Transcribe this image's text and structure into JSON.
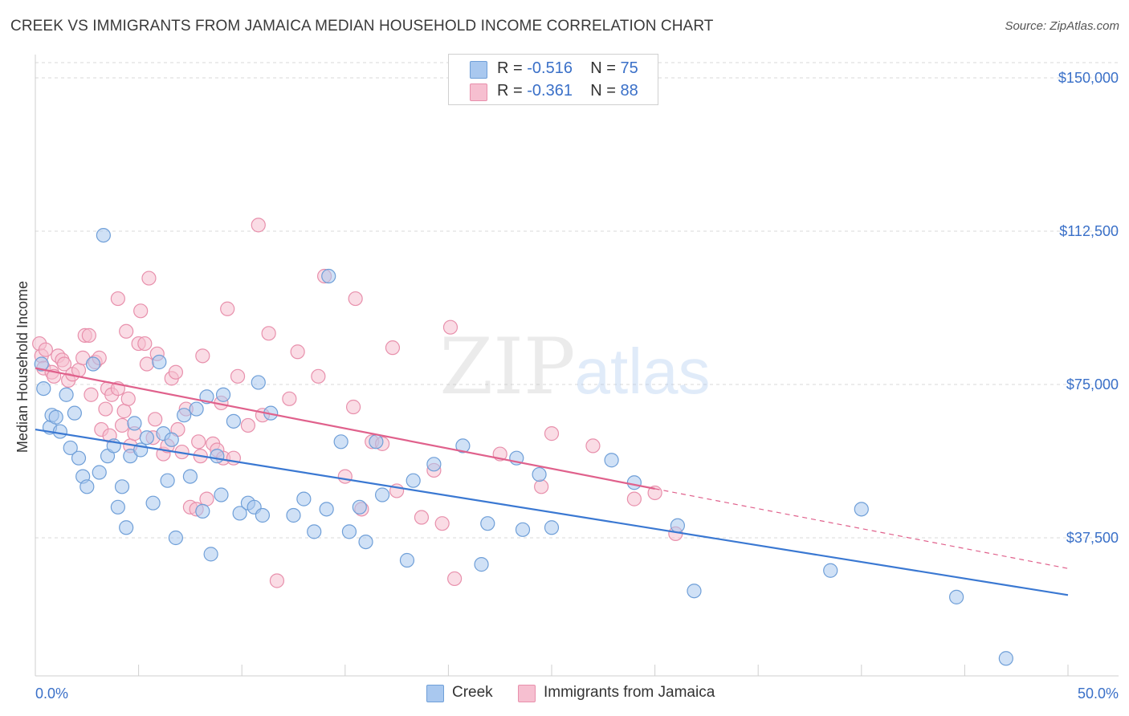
{
  "title": "CREEK VS IMMIGRANTS FROM JAMAICA MEDIAN HOUSEHOLD INCOME CORRELATION CHART",
  "source": "Source: ZipAtlas.com",
  "watermark": {
    "zip": "ZIP",
    "atlas": "atlas"
  },
  "legend": {
    "creek": {
      "r_label": "R =",
      "r_value": "-0.516",
      "n_label": "N =",
      "n_value": "75"
    },
    "jamaica": {
      "r_label": "R =",
      "r_value": "-0.361",
      "n_label": "N =",
      "n_value": "88"
    }
  },
  "bottom_legend": {
    "creek": "Creek",
    "jamaica": "Immigrants from Jamaica"
  },
  "colors": {
    "creek_fill": "#a9c8ef",
    "creek_stroke": "#6f9fd8",
    "creek_line": "#3a78d2",
    "jamaica_fill": "#f6bfd0",
    "jamaica_stroke": "#e890ac",
    "jamaica_line": "#e0618c",
    "axis_label": "#3a70c8",
    "grid": "#d8d8d8"
  },
  "chart_data": {
    "type": "scatter",
    "title": "CREEK VS IMMIGRANTS FROM JAMAICA MEDIAN HOUSEHOLD INCOME CORRELATION CHART",
    "xlabel": "",
    "ylabel": "Median Household Income",
    "xlim": [
      0,
      50
    ],
    "ylim": [
      0,
      150000
    ],
    "x_tick_labels": {
      "min": "0.0%",
      "max": "50.0%"
    },
    "y_ticks": [
      {
        "value": 37500,
        "label": "$37,500"
      },
      {
        "value": 75000,
        "label": "$75,000"
      },
      {
        "value": 112500,
        "label": "$112,500"
      },
      {
        "value": 150000,
        "label": "$150,000"
      }
    ],
    "grid": true,
    "legend_position": "top-center",
    "series": [
      {
        "name": "Creek",
        "r": -0.516,
        "n": 75,
        "trend": {
          "x0": 0,
          "y0": 64000,
          "x1": 50,
          "y1": 23500
        },
        "points": [
          [
            0.3,
            80000
          ],
          [
            0.4,
            74000
          ],
          [
            0.7,
            64500
          ],
          [
            0.8,
            67500
          ],
          [
            1.0,
            67000
          ],
          [
            1.2,
            63500
          ],
          [
            1.5,
            72500
          ],
          [
            1.7,
            59500
          ],
          [
            1.9,
            68000
          ],
          [
            2.1,
            57000
          ],
          [
            2.3,
            52500
          ],
          [
            2.5,
            50000
          ],
          [
            2.8,
            80000
          ],
          [
            3.1,
            53500
          ],
          [
            3.3,
            111500
          ],
          [
            3.5,
            57500
          ],
          [
            3.8,
            60000
          ],
          [
            4.0,
            45000
          ],
          [
            4.2,
            50000
          ],
          [
            4.4,
            40000
          ],
          [
            4.6,
            57500
          ],
          [
            4.8,
            65500
          ],
          [
            5.1,
            59000
          ],
          [
            5.4,
            62000
          ],
          [
            5.7,
            46000
          ],
          [
            6.0,
            80500
          ],
          [
            6.2,
            63000
          ],
          [
            6.4,
            51500
          ],
          [
            6.6,
            61500
          ],
          [
            6.8,
            37500
          ],
          [
            7.2,
            67500
          ],
          [
            7.5,
            52500
          ],
          [
            7.8,
            69000
          ],
          [
            8.1,
            44000
          ],
          [
            8.3,
            72000
          ],
          [
            8.5,
            33500
          ],
          [
            8.8,
            57500
          ],
          [
            9.0,
            48000
          ],
          [
            9.1,
            72500
          ],
          [
            9.6,
            66000
          ],
          [
            9.9,
            43500
          ],
          [
            10.3,
            46000
          ],
          [
            10.6,
            45000
          ],
          [
            10.8,
            75500
          ],
          [
            11.0,
            43000
          ],
          [
            11.4,
            68000
          ],
          [
            12.5,
            43000
          ],
          [
            13.0,
            47000
          ],
          [
            13.5,
            39000
          ],
          [
            14.1,
            44500
          ],
          [
            14.2,
            101500
          ],
          [
            14.8,
            61000
          ],
          [
            15.2,
            39000
          ],
          [
            15.7,
            45000
          ],
          [
            16.0,
            36500
          ],
          [
            16.5,
            61000
          ],
          [
            16.8,
            48000
          ],
          [
            18.0,
            32000
          ],
          [
            18.3,
            51500
          ],
          [
            19.3,
            55500
          ],
          [
            20.7,
            60000
          ],
          [
            21.6,
            31000
          ],
          [
            21.9,
            41000
          ],
          [
            23.3,
            57000
          ],
          [
            23.6,
            39500
          ],
          [
            24.4,
            53000
          ],
          [
            25.0,
            40000
          ],
          [
            27.9,
            56500
          ],
          [
            29.0,
            51000
          ],
          [
            31.1,
            40500
          ],
          [
            31.9,
            24500
          ],
          [
            38.5,
            29500
          ],
          [
            40.0,
            44500
          ],
          [
            44.6,
            23000
          ],
          [
            47.0,
            8000
          ]
        ]
      },
      {
        "name": "Immigrants from Jamaica",
        "r": -0.361,
        "n": 88,
        "trend": {
          "x0": 0,
          "y0": 79000,
          "x1": 30,
          "y1": 49500,
          "dashed_to": {
            "x": 50,
            "y": 30000
          }
        },
        "points": [
          [
            0.2,
            85000
          ],
          [
            0.3,
            82000
          ],
          [
            0.4,
            79000
          ],
          [
            0.5,
            83500
          ],
          [
            0.8,
            78000
          ],
          [
            0.9,
            77000
          ],
          [
            1.1,
            82000
          ],
          [
            1.3,
            81000
          ],
          [
            1.4,
            80000
          ],
          [
            1.6,
            76000
          ],
          [
            1.8,
            77500
          ],
          [
            2.1,
            78500
          ],
          [
            2.3,
            81500
          ],
          [
            2.4,
            87000
          ],
          [
            2.6,
            87000
          ],
          [
            2.7,
            72500
          ],
          [
            2.9,
            80500
          ],
          [
            3.1,
            81500
          ],
          [
            3.2,
            64000
          ],
          [
            3.4,
            69000
          ],
          [
            3.5,
            74000
          ],
          [
            3.6,
            62500
          ],
          [
            3.7,
            72500
          ],
          [
            4.0,
            74000
          ],
          [
            4.0,
            96000
          ],
          [
            4.2,
            65000
          ],
          [
            4.3,
            68500
          ],
          [
            4.4,
            88000
          ],
          [
            4.5,
            71500
          ],
          [
            4.6,
            60000
          ],
          [
            4.8,
            63000
          ],
          [
            5.0,
            85000
          ],
          [
            5.1,
            93000
          ],
          [
            5.3,
            85000
          ],
          [
            5.4,
            80000
          ],
          [
            5.5,
            101000
          ],
          [
            5.7,
            62000
          ],
          [
            5.8,
            66500
          ],
          [
            5.9,
            82500
          ],
          [
            6.2,
            58000
          ],
          [
            6.4,
            60000
          ],
          [
            6.6,
            76500
          ],
          [
            6.8,
            78000
          ],
          [
            6.9,
            64000
          ],
          [
            7.1,
            58500
          ],
          [
            7.3,
            69000
          ],
          [
            7.5,
            45000
          ],
          [
            7.8,
            44500
          ],
          [
            7.9,
            61000
          ],
          [
            8.0,
            57500
          ],
          [
            8.1,
            82000
          ],
          [
            8.3,
            47000
          ],
          [
            8.6,
            60500
          ],
          [
            8.8,
            59000
          ],
          [
            9.0,
            70500
          ],
          [
            9.1,
            57000
          ],
          [
            9.3,
            93500
          ],
          [
            9.6,
            57000
          ],
          [
            9.8,
            77000
          ],
          [
            10.3,
            65000
          ],
          [
            10.8,
            114000
          ],
          [
            11.0,
            67500
          ],
          [
            11.3,
            87500
          ],
          [
            11.7,
            27000
          ],
          [
            12.3,
            71500
          ],
          [
            12.7,
            83000
          ],
          [
            13.7,
            77000
          ],
          [
            14.0,
            101500
          ],
          [
            15.0,
            52500
          ],
          [
            15.4,
            69500
          ],
          [
            15.5,
            96000
          ],
          [
            15.8,
            44500
          ],
          [
            16.3,
            61000
          ],
          [
            16.8,
            60500
          ],
          [
            17.3,
            84000
          ],
          [
            17.5,
            49000
          ],
          [
            18.7,
            42500
          ],
          [
            19.3,
            54000
          ],
          [
            19.7,
            41000
          ],
          [
            20.1,
            89000
          ],
          [
            20.3,
            27500
          ],
          [
            25.0,
            63000
          ],
          [
            29.0,
            47000
          ],
          [
            30.0,
            48500
          ],
          [
            31.0,
            38500
          ],
          [
            27.0,
            60000
          ],
          [
            22.5,
            58000
          ],
          [
            24.5,
            50000
          ]
        ]
      }
    ]
  }
}
